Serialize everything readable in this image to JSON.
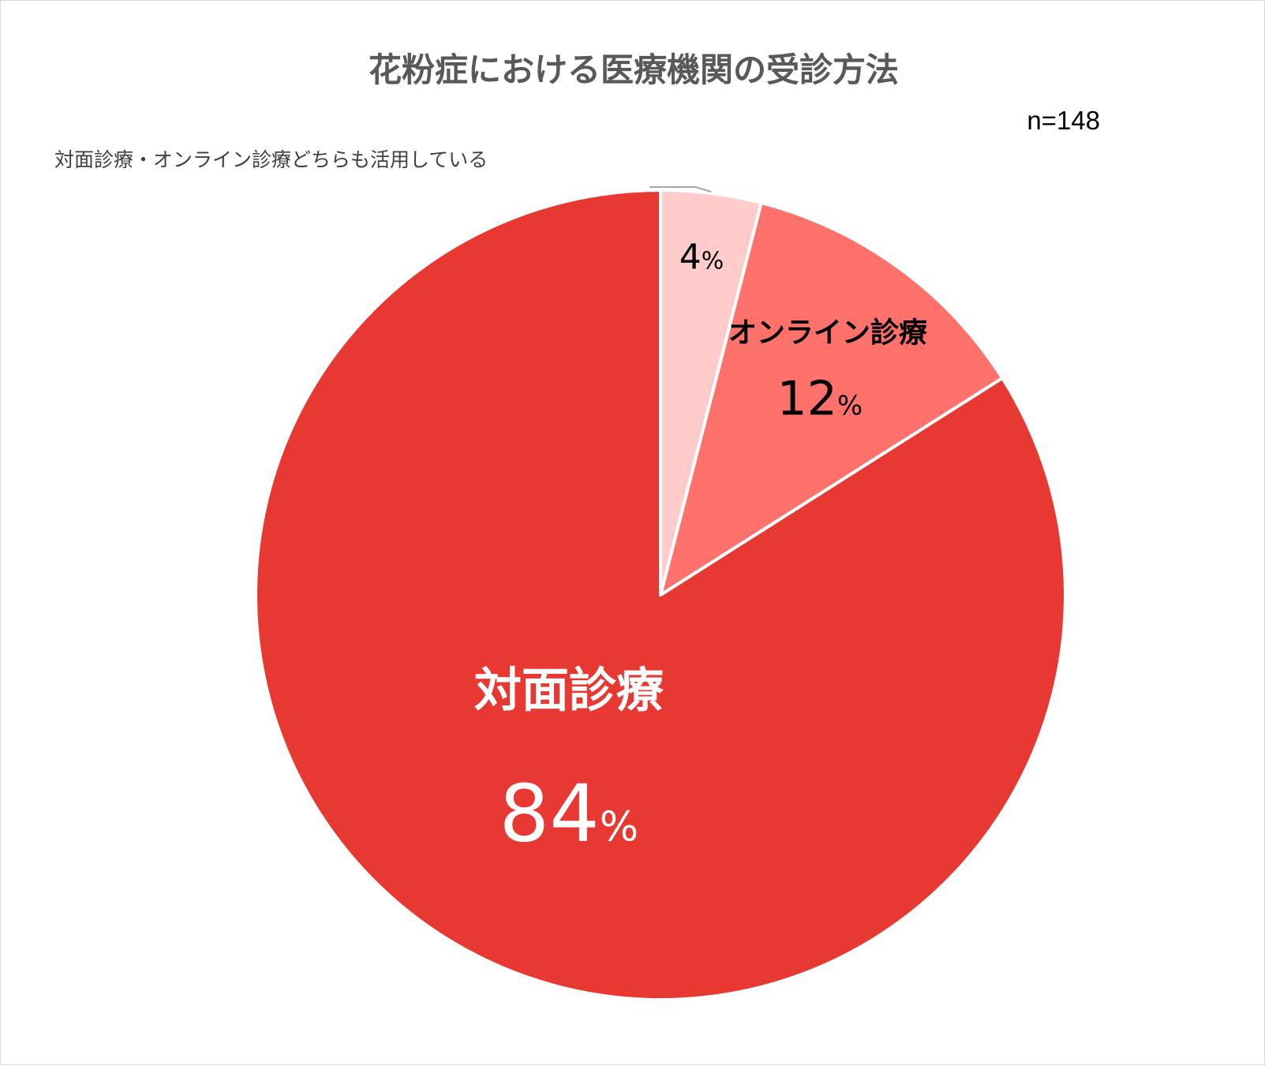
{
  "chart_data": {
    "type": "pie",
    "title": "花粉症における医療機関の受診方法",
    "note": "n=148",
    "unit": "%",
    "slices": [
      {
        "label": "対面診療",
        "value": 84,
        "color": "#e83832"
      },
      {
        "label": "オンライン診療",
        "value": 12,
        "color": "#ff726c"
      },
      {
        "label": "対面診療・オンライン診療どちらも活用している",
        "value": 4,
        "color": "#ffcbcb"
      }
    ],
    "start_angle": "12 o'clock",
    "direction": "counterclockwise",
    "legend": "none"
  }
}
